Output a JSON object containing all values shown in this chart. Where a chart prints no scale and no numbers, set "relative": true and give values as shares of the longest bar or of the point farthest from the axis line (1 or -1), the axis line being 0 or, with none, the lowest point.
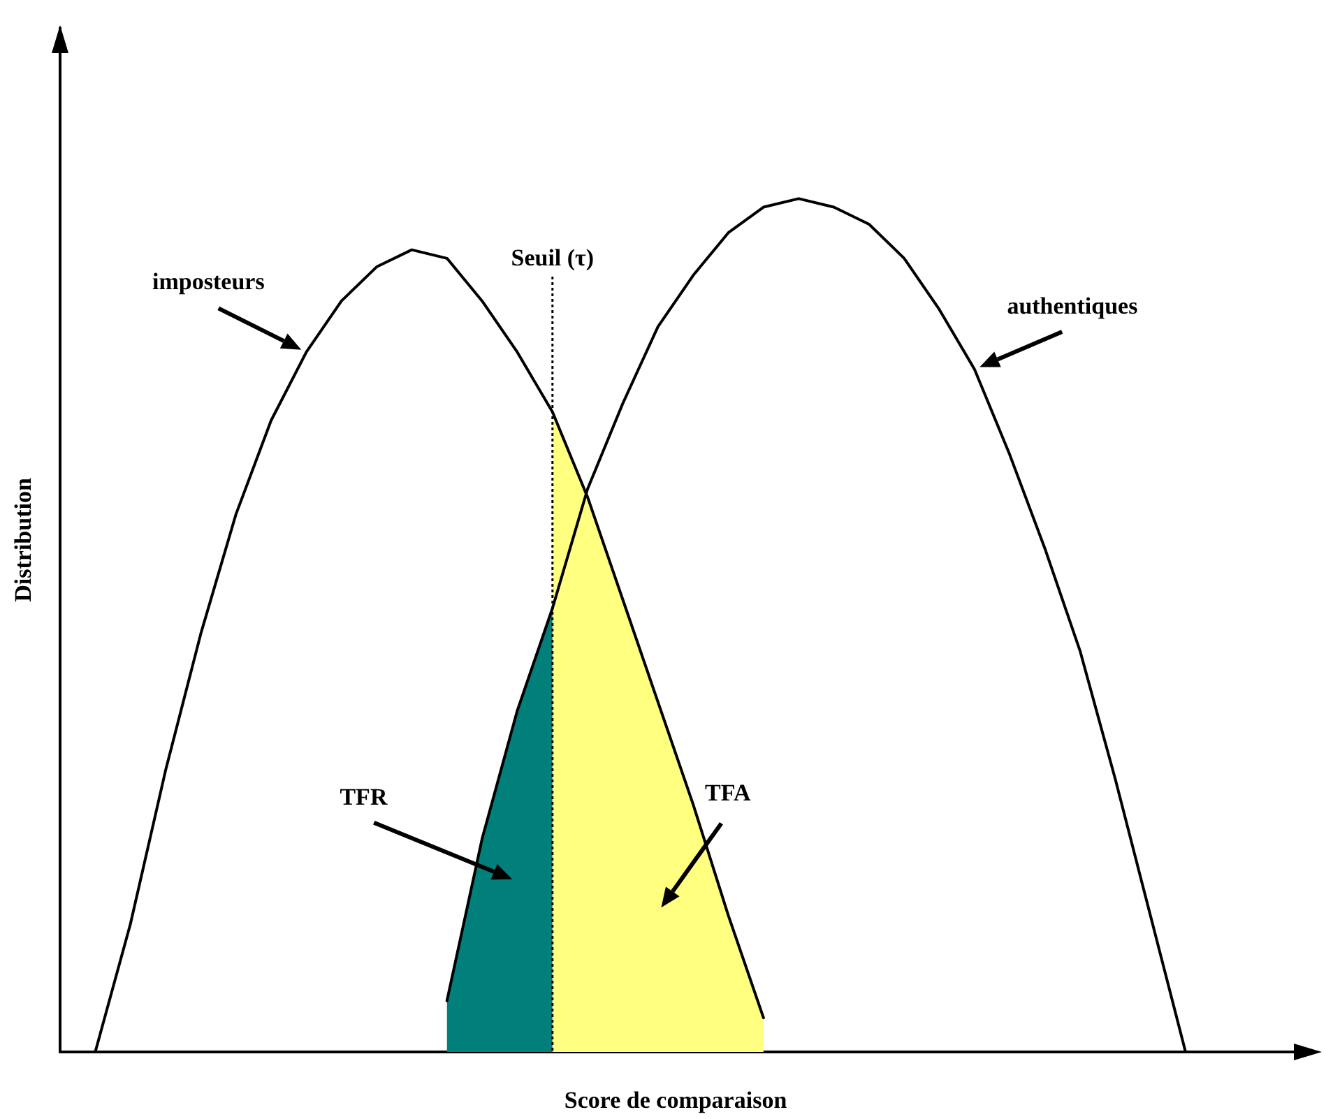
{
  "chart_data": {
    "type": "line",
    "relative": true,
    "xlabel": "Score de comparaison",
    "ylabel": "Distribution",
    "categories": [
      null,
      null,
      null,
      null,
      null,
      null,
      null,
      null,
      null,
      null,
      null,
      null,
      null,
      null,
      null,
      null,
      null,
      null,
      null,
      null,
      null,
      null,
      null,
      null,
      null,
      null,
      null,
      null,
      null,
      null,
      null,
      null,
      null,
      null,
      null,
      null
    ],
    "series": [
      {
        "name": "TFR",
        "type": "area",
        "color": "#007f7b",
        "values": [
          null,
          null,
          null,
          null,
          null,
          null,
          null,
          null,
          null,
          null,
          null,
          0.06,
          0.25,
          0.4,
          0.52,
          null,
          null,
          null,
          null,
          null,
          null,
          null,
          null,
          null,
          null,
          null,
          null,
          null,
          null,
          null,
          null,
          null,
          null,
          null,
          null,
          null
        ]
      },
      {
        "name": "TFA",
        "type": "area",
        "color": "#ffff80",
        "values": [
          null,
          null,
          null,
          null,
          null,
          null,
          null,
          null,
          null,
          null,
          null,
          null,
          null,
          null,
          0.75,
          0.65,
          0.53,
          0.41,
          0.29,
          0.16,
          0.04,
          null,
          null,
          null,
          null,
          null,
          null,
          null,
          null,
          null,
          null,
          null,
          null,
          null,
          null,
          null
        ]
      },
      {
        "name": "imposteurs",
        "color": "#000000",
        "values": [
          null,
          0,
          0.15,
          0.33,
          0.49,
          0.63,
          0.74,
          0.82,
          0.88,
          0.92,
          0.94,
          0.93,
          0.88,
          0.82,
          0.75,
          0.65,
          0.53,
          0.41,
          0.29,
          0.16,
          0.04,
          null,
          null,
          null,
          null,
          null,
          null,
          null,
          null,
          null,
          null,
          null,
          null,
          null,
          null,
          null
        ]
      },
      {
        "name": "authentiques",
        "color": "#000000",
        "values": [
          null,
          null,
          null,
          null,
          null,
          null,
          null,
          null,
          null,
          null,
          null,
          0.06,
          0.25,
          0.4,
          0.52,
          0.66,
          0.76,
          0.85,
          0.91,
          0.96,
          0.99,
          1.0,
          0.99,
          0.97,
          0.93,
          0.87,
          0.8,
          0.7,
          0.59,
          0.47,
          0.32,
          0.16,
          0,
          null,
          null,
          null
        ]
      }
    ],
    "annotations": [
      "Seuil (τ)"
    ],
    "marker": "none",
    "line_style": "solid",
    "grid": false,
    "legend": false
  }
}
